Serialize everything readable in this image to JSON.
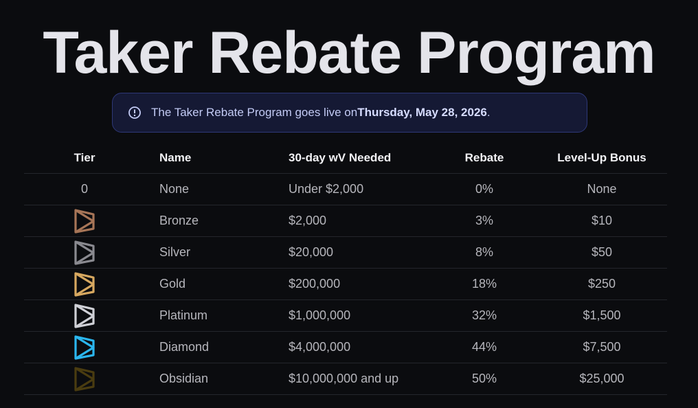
{
  "header": {
    "title": "Taker Rebate Program"
  },
  "banner": {
    "text": "The Taker Rebate Program goes live on ",
    "date": "Thursday, May 28, 2026",
    "end": "."
  },
  "table": {
    "columns": [
      "Tier",
      "Name",
      "30-day wV Needed",
      "Rebate",
      "Level-Up Bonus"
    ],
    "rows": [
      {
        "tier": "0",
        "name": "None",
        "volume": "Under $2,000",
        "rebate": "0%",
        "bonus": "None"
      },
      {
        "name": "Bronze",
        "volume": "$2,000",
        "rebate": "3%",
        "bonus": "$10"
      },
      {
        "name": "Silver",
        "volume": "$20,000",
        "rebate": "8%",
        "bonus": "$50"
      },
      {
        "name": "Gold",
        "volume": "$200,000",
        "rebate": "18%",
        "bonus": "$250"
      },
      {
        "name": "Platinum",
        "volume": "$1,000,000",
        "rebate": "32%",
        "bonus": "$1,500"
      },
      {
        "name": "Diamond",
        "volume": "$4,000,000",
        "rebate": "44%",
        "bonus": "$7,500"
      },
      {
        "name": "Obsidian",
        "volume": "$10,000,000 and up",
        "rebate": "50%",
        "bonus": "$25,000"
      }
    ]
  }
}
